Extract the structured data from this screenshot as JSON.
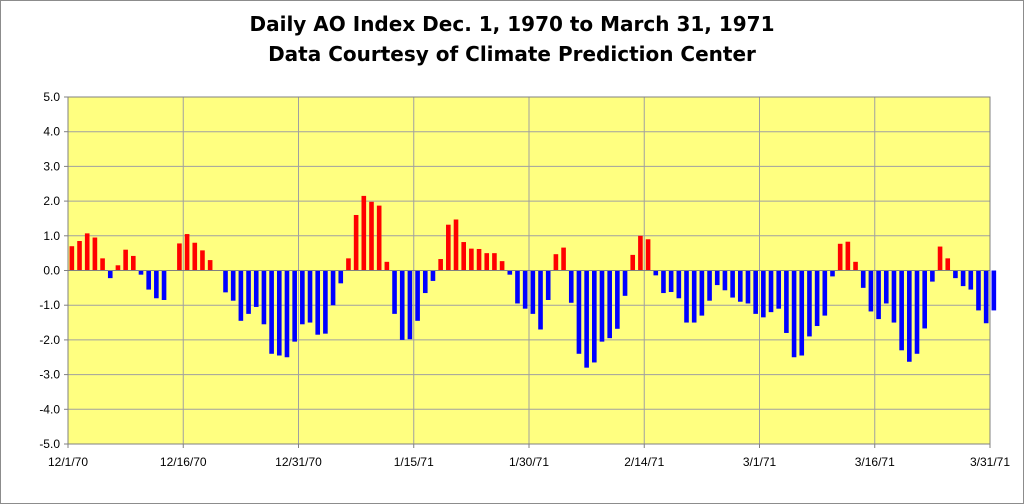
{
  "chart_data": {
    "type": "bar",
    "title": "Daily AO Index Dec. 1, 1970 to March 31, 1971",
    "subtitle": "Data Courtesy of Climate Prediction Center",
    "xlabel": "",
    "ylabel": "",
    "ylim": [
      -5.0,
      5.0
    ],
    "y_ticks": [
      "5.0",
      "4.0",
      "3.0",
      "2.0",
      "1.0",
      "0.0",
      "-1.0",
      "-2.0",
      "-3.0",
      "-4.0",
      "-5.0"
    ],
    "y_tick_values": [
      5,
      4,
      3,
      2,
      1,
      0,
      -1,
      -2,
      -3,
      -4,
      -5
    ],
    "x_tick_labels": [
      "12/1/70",
      "12/16/70",
      "12/31/70",
      "1/15/71",
      "1/30/71",
      "2/14/71",
      "3/1/71",
      "3/16/71",
      "3/31/71"
    ],
    "x_tick_days": [
      0,
      15,
      30,
      45,
      60,
      75,
      90,
      105,
      120
    ],
    "start_date": "12/1/70",
    "end_date": "3/31/71",
    "grid": true,
    "colors": {
      "positive": "#ff0000",
      "negative": "#0000ff",
      "plot_background": "#ffff80",
      "gridline": "#a0a0a0"
    },
    "values": [
      0.7,
      0.85,
      1.07,
      0.95,
      0.35,
      -0.22,
      0.15,
      0.6,
      0.42,
      -0.12,
      -0.55,
      -0.8,
      -0.85,
      0.0,
      0.78,
      1.05,
      0.8,
      0.58,
      0.3,
      0.0,
      -0.63,
      -0.87,
      -1.45,
      -1.25,
      -1.05,
      -1.55,
      -2.4,
      -2.45,
      -2.5,
      -2.05,
      -1.55,
      -1.5,
      -1.85,
      -1.82,
      -1.0,
      -0.37,
      0.35,
      1.6,
      2.15,
      1.98,
      1.87,
      0.25,
      -1.25,
      -2.0,
      -1.98,
      -1.45,
      -0.65,
      -0.3,
      0.33,
      1.32,
      1.47,
      0.82,
      0.63,
      0.62,
      0.5,
      0.5,
      0.27,
      -0.12,
      -0.95,
      -1.1,
      -1.25,
      -1.7,
      -0.85,
      0.47,
      0.66,
      -0.93,
      -2.4,
      -2.8,
      -2.65,
      -2.05,
      -1.95,
      -1.68,
      -0.73,
      0.45,
      1.0,
      0.9,
      -0.14,
      -0.65,
      -0.62,
      -0.8,
      -1.5,
      -1.5,
      -1.3,
      -0.87,
      -0.42,
      -0.57,
      -0.78,
      -0.9,
      -0.95,
      -1.25,
      -1.35,
      -1.2,
      -1.1,
      -1.8,
      -2.5,
      -2.45,
      -1.9,
      -1.6,
      -1.3,
      -0.17,
      0.77,
      0.83,
      0.25,
      -0.5,
      -1.18,
      -1.4,
      -0.95,
      -1.5,
      -2.3,
      -2.63,
      -2.4,
      -1.67,
      -0.32,
      0.69,
      0.35,
      -0.22,
      -0.45,
      -0.55,
      -1.15,
      -1.52,
      -1.15
    ]
  }
}
